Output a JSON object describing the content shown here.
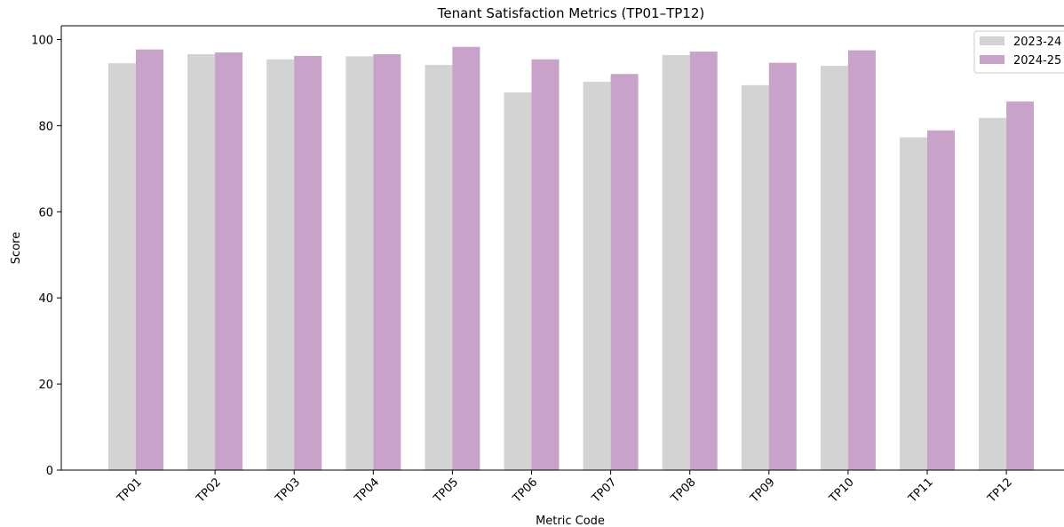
{
  "chart_data": {
    "type": "bar",
    "title": "Tenant Satisfaction Metrics (TP01–TP12)",
    "xlabel": "Metric Code",
    "ylabel": "Score",
    "categories": [
      "TP01",
      "TP02",
      "TP03",
      "TP04",
      "TP05",
      "TP06",
      "TP07",
      "TP08",
      "TP09",
      "TP10",
      "TP11",
      "TP12"
    ],
    "series": [
      {
        "name": "2023-24",
        "color": "#d3d3d3",
        "values": [
          94.5,
          96.6,
          95.4,
          96.1,
          94.1,
          87.7,
          90.2,
          96.4,
          89.4,
          93.9,
          77.3,
          81.8
        ]
      },
      {
        "name": "2024-25",
        "color": "#c8a2c8",
        "values": [
          97.7,
          97.0,
          96.2,
          96.6,
          98.3,
          95.4,
          92.0,
          97.2,
          94.6,
          97.5,
          78.9,
          85.6
        ]
      }
    ],
    "ylim": [
      0,
      103.2
    ],
    "yticks": [
      0,
      20,
      40,
      60,
      80,
      100
    ],
    "legend_position": "top-right",
    "grid": false
  }
}
